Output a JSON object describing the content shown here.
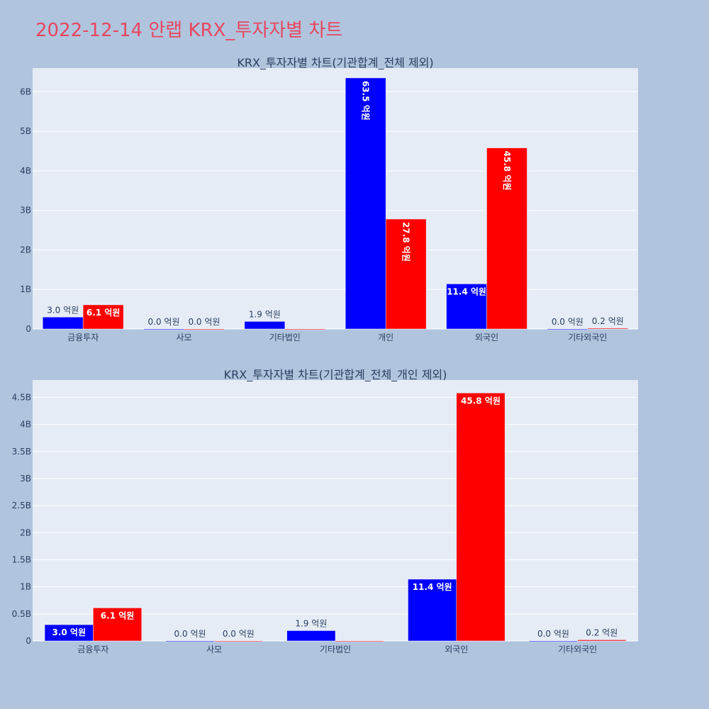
{
  "page_title": "2022-12-14 안랩 KRX_투자자별 차트",
  "colors": {
    "buy": "#0000ff",
    "sell": "#ff0000",
    "plot_bg": "#e5ecf6",
    "page_bg": "#b0c4de",
    "title": "#e8475f",
    "text": "#2a3f5f"
  },
  "chart_data": [
    {
      "type": "bar",
      "title": "KRX_투자자별 차트(기관합계_전체 제외)",
      "categories": [
        "금융투자",
        "사모",
        "기타법인",
        "개인",
        "외국인",
        "기타외국인"
      ],
      "series": [
        {
          "values": [
            300000000,
            0,
            190000000,
            6350000000,
            1140000000,
            0
          ],
          "labels": [
            "3.0 억원",
            "0.0 억원",
            "1.9 억원",
            "63.5 억원",
            "11.4 억원",
            "0.0 억원"
          ]
        },
        {
          "values": [
            610000000,
            0,
            0,
            2780000000,
            4580000000,
            20000000
          ],
          "labels": [
            "6.1 억원",
            "0.0 억원",
            "",
            "27.8 억원",
            "45.8 억원",
            "0.2 억원"
          ]
        }
      ],
      "ylim": [
        0,
        6600000000
      ],
      "yticks": [
        0,
        1000000000,
        2000000000,
        3000000000,
        4000000000,
        5000000000,
        6000000000
      ],
      "ytick_labels": [
        "0",
        "1B",
        "2B",
        "3B",
        "4B",
        "5B",
        "6B"
      ],
      "grid": true
    },
    {
      "type": "bar",
      "title": "KRX_투자자별 차트(기관합계_전체_개인 제외)",
      "categories": [
        "금융투자",
        "사모",
        "기타법인",
        "외국인",
        "기타외국인"
      ],
      "series": [
        {
          "values": [
            300000000,
            0,
            190000000,
            1140000000,
            0
          ],
          "labels": [
            "3.0 억원",
            "0.0 억원",
            "1.9 억원",
            "11.4 억원",
            "0.0 억원"
          ]
        },
        {
          "values": [
            610000000,
            0,
            0,
            4580000000,
            20000000
          ],
          "labels": [
            "6.1 억원",
            "0.0 억원",
            "",
            "45.8 억원",
            "0.2 억원"
          ]
        }
      ],
      "ylim": [
        0,
        4820000000
      ],
      "yticks": [
        0,
        500000000,
        1000000000,
        1500000000,
        2000000000,
        2500000000,
        3000000000,
        3500000000,
        4000000000,
        4500000000
      ],
      "ytick_labels": [
        "0",
        "0.5B",
        "1B",
        "1.5B",
        "2B",
        "2.5B",
        "3B",
        "3.5B",
        "4B",
        "4.5B"
      ],
      "grid": true
    }
  ]
}
